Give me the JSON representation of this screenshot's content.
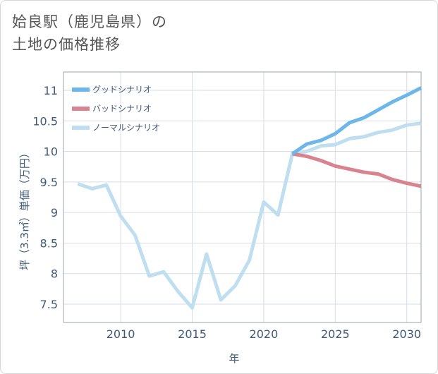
{
  "title": "姶良駅（鹿児島県）の\n土地の価格推移",
  "chart_data": {
    "type": "line",
    "title": "姶良駅（鹿児島県）の土地の価格推移",
    "xlabel": "年",
    "ylabel": "坪（3.3㎡）単価（万円）",
    "xlim": [
      2006,
      2031
    ],
    "ylim": [
      7.2,
      11.3
    ],
    "xticks": [
      2010,
      2015,
      2020,
      2025,
      2030
    ],
    "yticks": [
      7.5,
      8,
      8.5,
      9,
      9.5,
      10,
      10.5,
      11
    ],
    "xtick_labels": [
      "2010",
      "2015",
      "2020",
      "2025",
      "2030"
    ],
    "ytick_labels": [
      "7.5",
      "8",
      "8.5",
      "9",
      "9.5",
      "10",
      "10.5",
      "11"
    ],
    "grid": true,
    "legend_position": "top-left",
    "series": [
      {
        "name": "グッドシナリオ",
        "color": "#6cb6ea",
        "x": [
          2022,
          2023,
          2024,
          2025,
          2026,
          2027,
          2028,
          2029,
          2030,
          2031
        ],
        "y": [
          9.96,
          10.12,
          10.18,
          10.29,
          10.47,
          10.55,
          10.68,
          10.81,
          10.92,
          11.04
        ]
      },
      {
        "name": "バッドシナリオ",
        "color": "#d9838f",
        "x": [
          2022,
          2023,
          2024,
          2025,
          2026,
          2027,
          2028,
          2029,
          2030,
          2031
        ],
        "y": [
          9.96,
          9.92,
          9.85,
          9.76,
          9.71,
          9.66,
          9.63,
          9.54,
          9.48,
          9.43
        ]
      },
      {
        "name": "ノーマルシナリオ",
        "color": "#bfdff0",
        "x": [
          2007,
          2008,
          2009,
          2010,
          2011,
          2012,
          2013,
          2014,
          2015,
          2016,
          2017,
          2018,
          2019,
          2020,
          2021,
          2022,
          2023,
          2024,
          2025,
          2026,
          2027,
          2028,
          2029,
          2030,
          2031
        ],
        "y": [
          9.47,
          9.39,
          9.45,
          8.94,
          8.63,
          7.96,
          8.03,
          7.71,
          7.44,
          8.32,
          7.57,
          7.8,
          8.22,
          9.17,
          8.96,
          9.96,
          10.0,
          10.09,
          10.11,
          10.21,
          10.24,
          10.31,
          10.35,
          10.43,
          10.46
        ]
      }
    ]
  }
}
